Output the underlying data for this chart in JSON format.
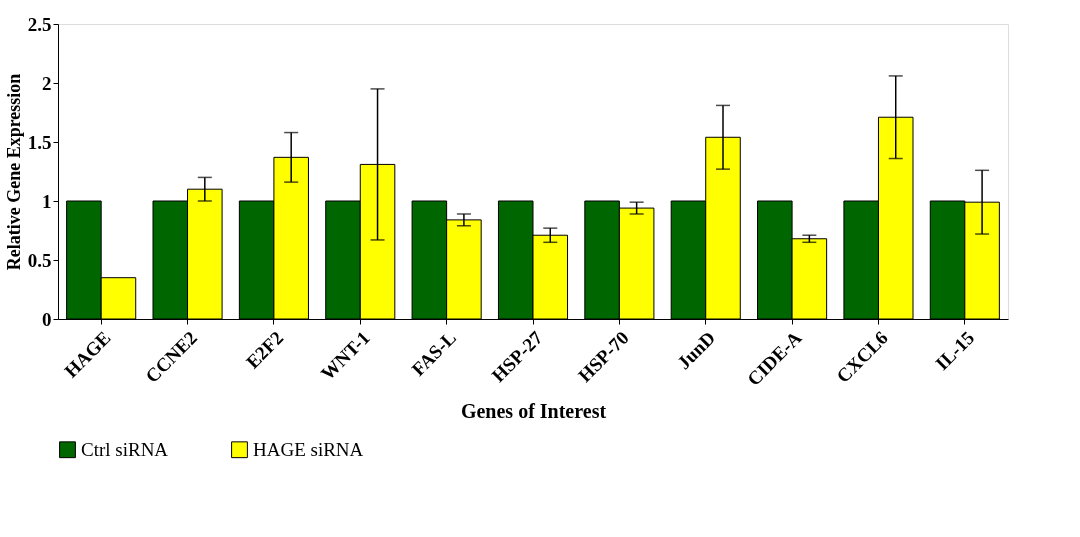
{
  "chart_data": {
    "type": "bar",
    "xlabel": "Genes of Interest",
    "ylabel": "Relative Gene Expression",
    "categories": [
      "HAGE",
      "CCNE2",
      "E2F2",
      "WNT-1",
      "FAS-L",
      "HSP-27",
      "HSP-70",
      "JunD",
      "CIDE-A",
      "CXCL6",
      "IL-15"
    ],
    "series": [
      {
        "name": "Ctrl siRNA",
        "color": "#006600",
        "values": [
          1,
          1,
          1,
          1,
          1,
          1,
          1,
          1,
          1,
          1,
          1
        ]
      },
      {
        "name": "HAGE siRNA",
        "color": "#ffff00",
        "values": [
          0.35,
          1.1,
          1.37,
          1.31,
          0.84,
          0.71,
          0.94,
          1.54,
          0.68,
          1.71,
          0.99
        ],
        "errors": [
          null,
          0.1,
          0.21,
          0.64,
          0.05,
          0.06,
          0.05,
          0.27,
          0.03,
          0.35,
          0.27
        ]
      }
    ],
    "ylim": [
      0,
      2.5
    ],
    "yticks": [
      0,
      0.5,
      1,
      1.5,
      2,
      2.5
    ],
    "grid": false,
    "legend": "bottom"
  }
}
